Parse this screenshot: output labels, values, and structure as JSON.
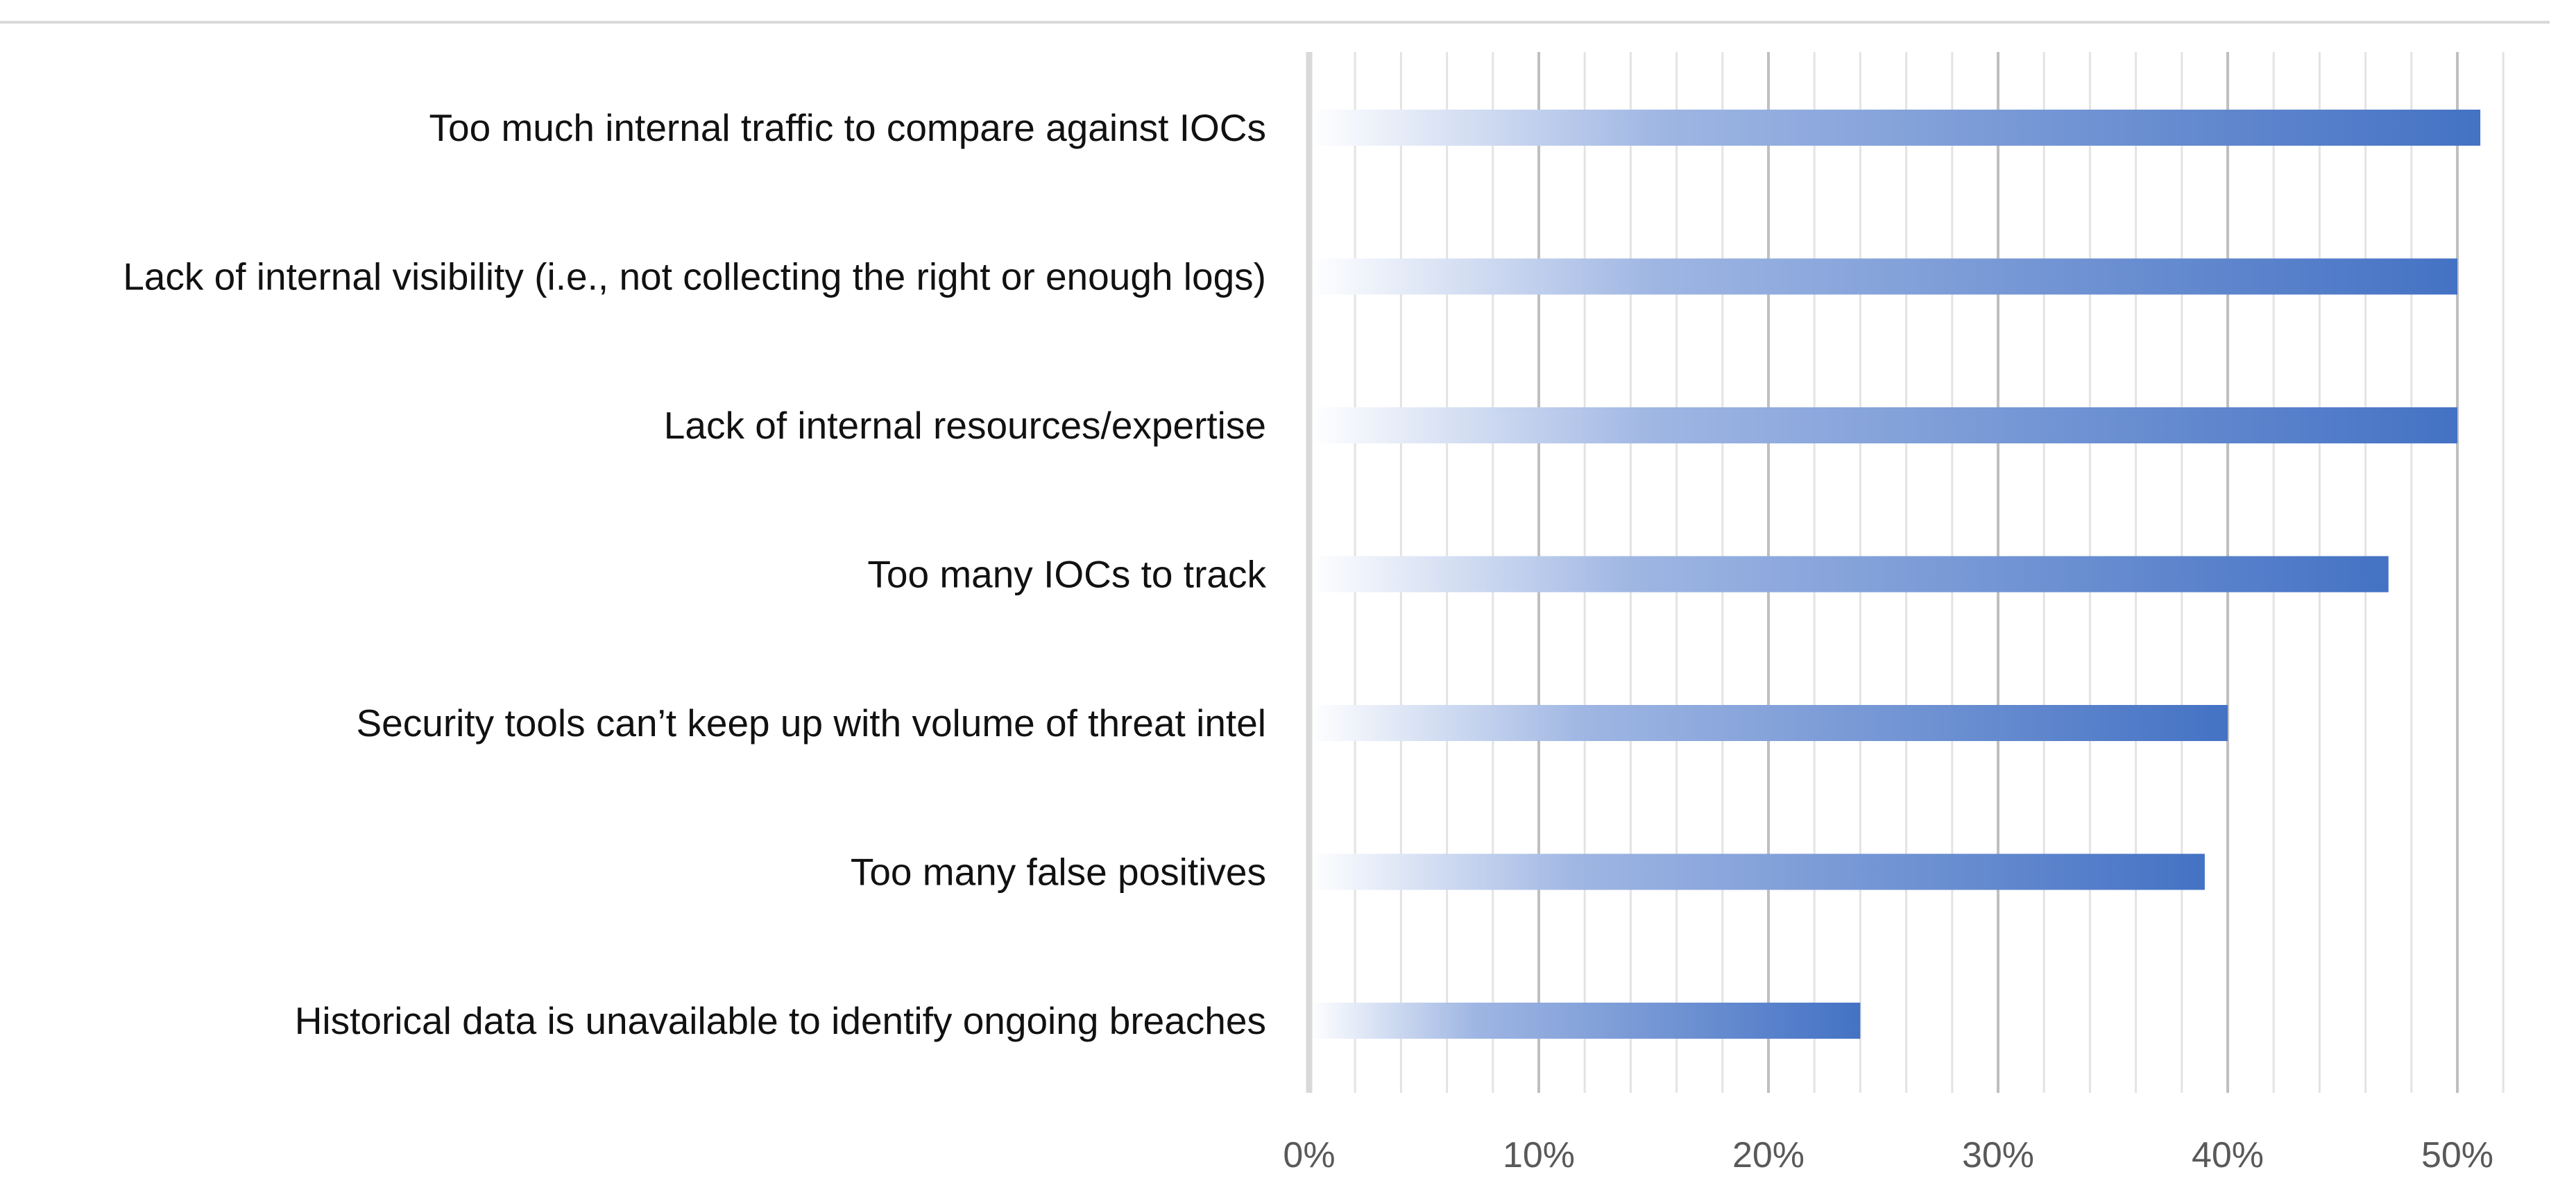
{
  "chart_data": {
    "type": "bar",
    "orientation": "horizontal",
    "title": "",
    "xlabel": "",
    "ylabel": "",
    "categories": [
      "Too much internal traffic to compare against IOCs",
      "Lack of internal visibility (i.e., not collecting the right or enough logs)",
      "Lack of internal resources/expertise",
      "Too many IOCs to track",
      "Security tools can’t keep up with volume of threat intel",
      "Too many false positives",
      "Historical data is unavailable to identify ongoing breaches"
    ],
    "values": [
      51,
      50,
      50,
      47,
      40,
      39,
      24
    ],
    "xlim": [
      0,
      52
    ],
    "major_ticks": [
      0,
      10,
      20,
      30,
      40,
      50
    ],
    "tick_labels": [
      "0%",
      "10%",
      "20%",
      "30%",
      "40%",
      "50%"
    ],
    "minor_tick_step": 2,
    "grid": true,
    "legend": "none",
    "bar_color": "#4472C4",
    "bar_fade_color": "#ffffff"
  }
}
